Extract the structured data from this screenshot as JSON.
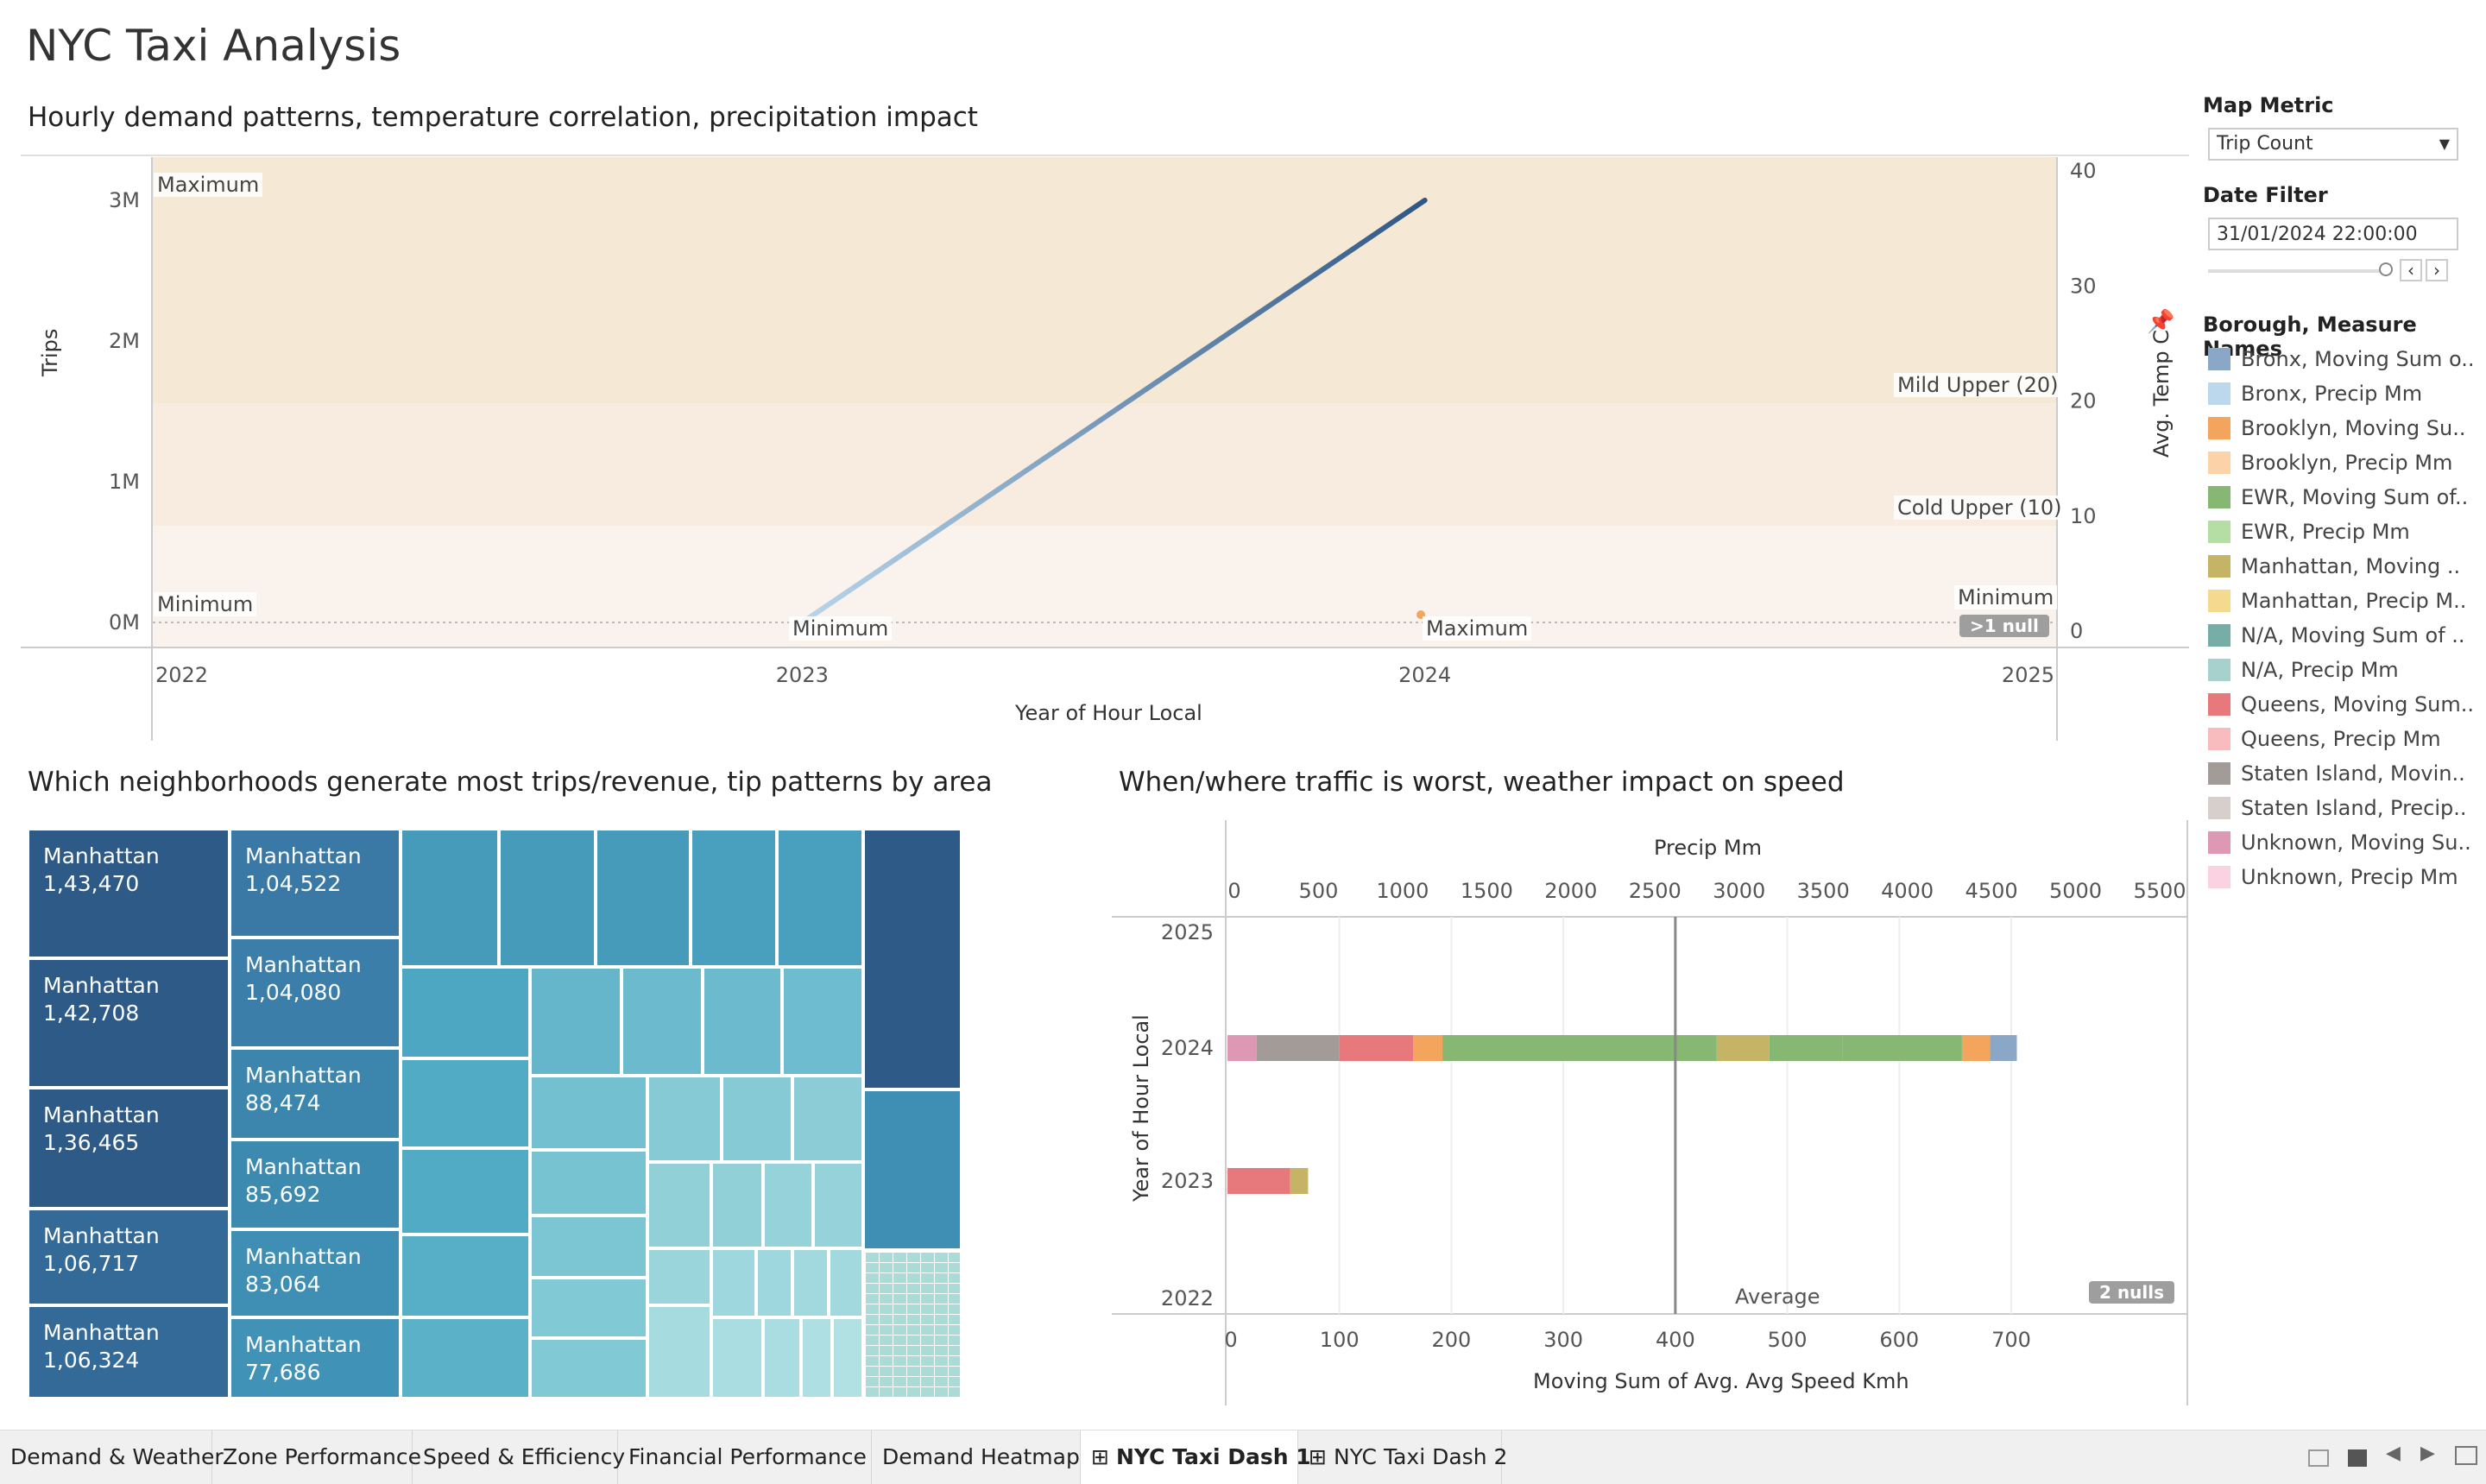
{
  "dashboard": {
    "title": "NYC Taxi Analysis"
  },
  "top_chart": {
    "title": "Hourly demand patterns, temperature correlation, precipitation impact",
    "y_left_label": "Trips",
    "y_right_label": "Avg. Temp C",
    "x_label": "Year of Hour Local",
    "null_badge": ">1 null",
    "ref_labels": {
      "maximum_left": "Maximum",
      "minimum_left": "Minimum",
      "minimum_2023": "Minimum",
      "maximum_2024": "Maximum",
      "mild_upper": "Mild Upper (20)",
      "cold_upper": "Cold Upper (10)",
      "minimum_right": "Minimum"
    }
  },
  "tree_chart": {
    "title": "Which neighborhoods generate most trips/revenue, tip patterns by area",
    "cells": [
      {
        "name": "Manhattan",
        "value": "1,43,470"
      },
      {
        "name": "Manhattan",
        "value": "1,42,708"
      },
      {
        "name": "Manhattan",
        "value": "1,36,465"
      },
      {
        "name": "Manhattan",
        "value": "1,06,717"
      },
      {
        "name": "Manhattan",
        "value": "1,06,324"
      },
      {
        "name": "Manhattan",
        "value": "1,04,522"
      },
      {
        "name": "Manhattan",
        "value": "1,04,080"
      },
      {
        "name": "Manhattan",
        "value": "88,474"
      },
      {
        "name": "Manhattan",
        "value": "85,692"
      },
      {
        "name": "Manhattan",
        "value": "83,064"
      },
      {
        "name": "Manhattan",
        "value": "77,686"
      }
    ]
  },
  "speed_chart": {
    "title": "When/where traffic is worst, weather impact on speed",
    "top_axis_label": "Precip Mm",
    "bottom_axis_label": "Moving Sum of Avg. Avg Speed Kmh",
    "y_label": "Year of Hour Local",
    "average_label": "Average",
    "null_badge": "2 nulls"
  },
  "controls": {
    "map_metric_label": "Map Metric",
    "map_metric_value": "Trip Count",
    "date_filter_label": "Date Filter",
    "date_filter_value": "31/01/2024 22:00:00"
  },
  "legend": {
    "title": "Borough, Measure Names",
    "items": [
      {
        "label": "Bronx, Moving Sum o..",
        "color": "#8aa7c8"
      },
      {
        "label": "Bronx, Precip Mm",
        "color": "#bcd8ec"
      },
      {
        "label": "Brooklyn, Moving Su..",
        "color": "#f3a55e"
      },
      {
        "label": "Brooklyn, Precip Mm",
        "color": "#fcd2a8"
      },
      {
        "label": "EWR, Moving Sum of..",
        "color": "#86b874"
      },
      {
        "label": "EWR, Precip Mm",
        "color": "#b5dea5"
      },
      {
        "label": "Manhattan, Moving ..",
        "color": "#c6b466"
      },
      {
        "label": "Manhattan, Precip M..",
        "color": "#f4d98e"
      },
      {
        "label": "N/A, Moving Sum of ..",
        "color": "#77ada7"
      },
      {
        "label": "N/A, Precip Mm",
        "color": "#a7d1cc"
      },
      {
        "label": "Queens, Moving Sum..",
        "color": "#e7797d"
      },
      {
        "label": "Queens, Precip Mm",
        "color": "#f8bcbf"
      },
      {
        "label": "Staten Island, Movin..",
        "color": "#a39b98"
      },
      {
        "label": "Staten Island, Precip..",
        "color": "#d6cfcc"
      },
      {
        "label": "Unknown, Moving Su..",
        "color": "#dd98b3"
      },
      {
        "label": "Unknown, Precip Mm",
        "color": "#fbd2e2"
      }
    ]
  },
  "tabs": [
    {
      "label": "Demand & Weather"
    },
    {
      "label": "Zone Performance"
    },
    {
      "label": "Speed & Efficiency"
    },
    {
      "label": "Financial Performance"
    },
    {
      "label": "Demand Heatmap"
    },
    {
      "label": "NYC Taxi Dash 1"
    },
    {
      "label": "NYC Taxi Dash 2"
    }
  ],
  "chart_data": [
    {
      "type": "line",
      "x_label": "Year of Hour Local",
      "x_ticks": [
        "2022",
        "2023",
        "2024",
        "2025"
      ],
      "y_left": {
        "label": "Trips",
        "ticks": [
          "0M",
          "1M",
          "2M",
          "3M"
        ]
      },
      "y_right": {
        "label": "Avg. Temp C",
        "ticks": [
          "0",
          "10",
          "20",
          "30",
          "40"
        ]
      },
      "series": [
        {
          "values": [
            {
              "x": "2023",
              "y": 0
            },
            {
              "x": "2024",
              "y": 3000000
            }
          ]
        }
      ]
    },
    {
      "type": "bar",
      "orientation": "horizontal",
      "stacked": true,
      "y_label": "Year of Hour Local",
      "y_ticks": [
        "2025",
        "2024",
        "2023",
        "2022"
      ],
      "x_top": {
        "label": "Precip Mm",
        "ticks": [
          "0",
          "500",
          "1000",
          "1500",
          "2000",
          "2500",
          "3000",
          "3500",
          "4000",
          "4500",
          "5000",
          "5500"
        ]
      },
      "x_bottom": {
        "label": "Moving Sum of Avg. Avg Speed Kmh",
        "ticks": [
          "0",
          "100",
          "200",
          "300",
          "400",
          "500",
          "600",
          "700"
        ]
      },
      "average": 400,
      "bars": [
        {
          "year": "2024",
          "segments": [
            {
              "color": "#dd98b3",
              "value": 26
            },
            {
              "color": "#a39b98",
              "value": 74
            },
            {
              "color": "#e7797d",
              "value": 66
            },
            {
              "color": "#f3a55e",
              "value": 26
            },
            {
              "color": "#86b874",
              "value": 245
            },
            {
              "color": "#c6b466",
              "value": 47
            },
            {
              "color": "#86b874",
              "value": 65
            },
            {
              "color": "#86b874",
              "value": 107
            },
            {
              "color": "#f3a55e",
              "value": 25
            },
            {
              "color": "#8aa7c8",
              "value": 24
            }
          ]
        },
        {
          "year": "2023",
          "segments": [
            {
              "color": "#e7797d",
              "value": 56
            },
            {
              "color": "#c6b466",
              "value": 16
            }
          ]
        }
      ]
    }
  ]
}
